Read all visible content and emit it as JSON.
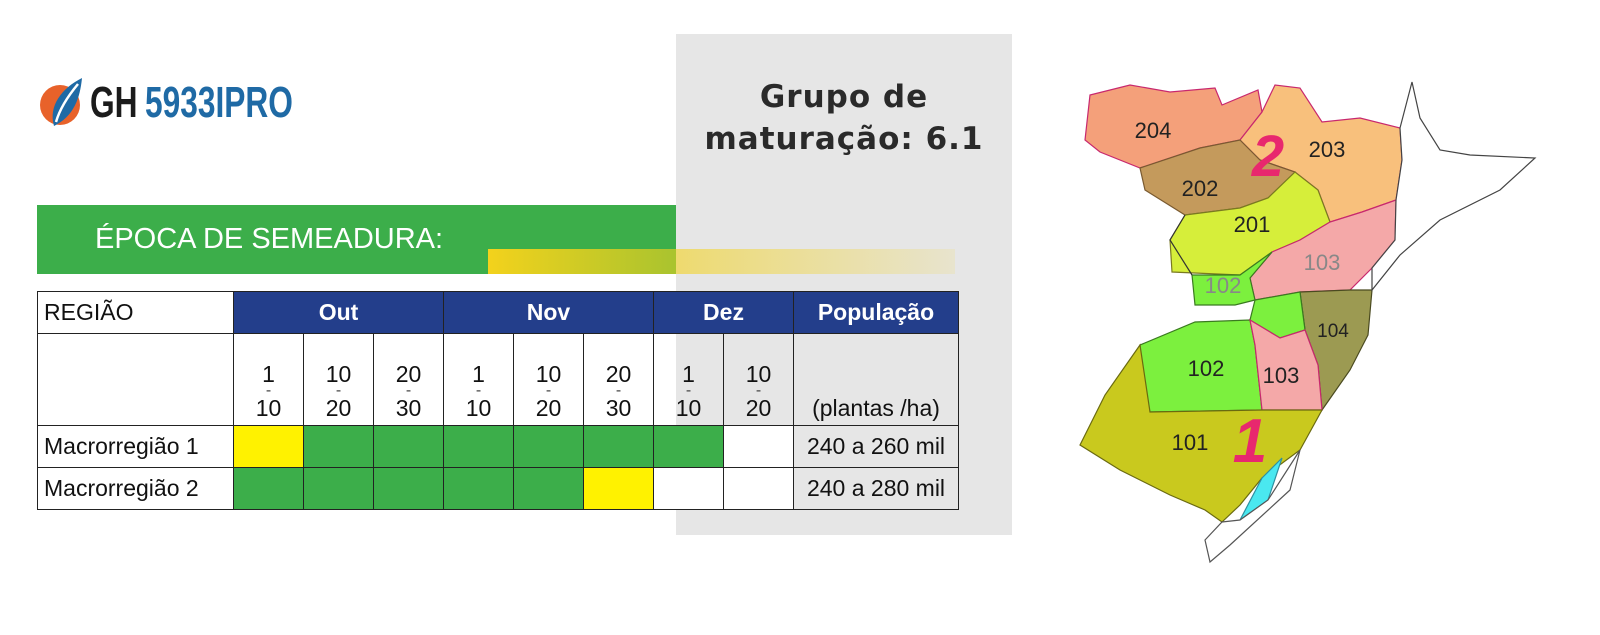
{
  "logo": {
    "brand": "GH",
    "product": "5933IPRO"
  },
  "maturity": {
    "line1": "Grupo de",
    "line2": "maturação: 6.1"
  },
  "banner": "ÉPOCA DE SEMEADURA:",
  "table": {
    "region_header": "REGIÃO",
    "months": [
      {
        "name": "Out",
        "periods": [
          [
            "1",
            "-",
            "10"
          ],
          [
            "10",
            "-",
            "20"
          ],
          [
            "20",
            "-",
            "30"
          ]
        ]
      },
      {
        "name": "Nov",
        "periods": [
          [
            "1",
            "-",
            "10"
          ],
          [
            "10",
            "-",
            "20"
          ],
          [
            "20",
            "-",
            "30"
          ]
        ]
      },
      {
        "name": "Dez",
        "periods": [
          [
            "1",
            "-",
            "10"
          ],
          [
            "10",
            "-",
            "20"
          ]
        ]
      }
    ],
    "population_header": "População",
    "population_unit": "(plantas /ha)",
    "rows": [
      {
        "region": "Macrorregião 1",
        "cells": [
          "#fff200",
          "#3cae4a",
          "#3cae4a",
          "#3cae4a",
          "#3cae4a",
          "#3cae4a",
          "#3cae4a",
          "#ffffff"
        ],
        "population": "240 a 260 mil"
      },
      {
        "region": "Macrorregião 2",
        "cells": [
          "#3cae4a",
          "#3cae4a",
          "#3cae4a",
          "#3cae4a",
          "#3cae4a",
          "#fff200",
          "#ffffff",
          "#ffffff"
        ],
        "population": "240 a 280 mil"
      }
    ]
  },
  "map": {
    "macroregions": [
      "1",
      "2"
    ],
    "regions": [
      "204",
      "203",
      "202",
      "201",
      "103",
      "102",
      "104",
      "102",
      "103",
      "101"
    ]
  }
}
